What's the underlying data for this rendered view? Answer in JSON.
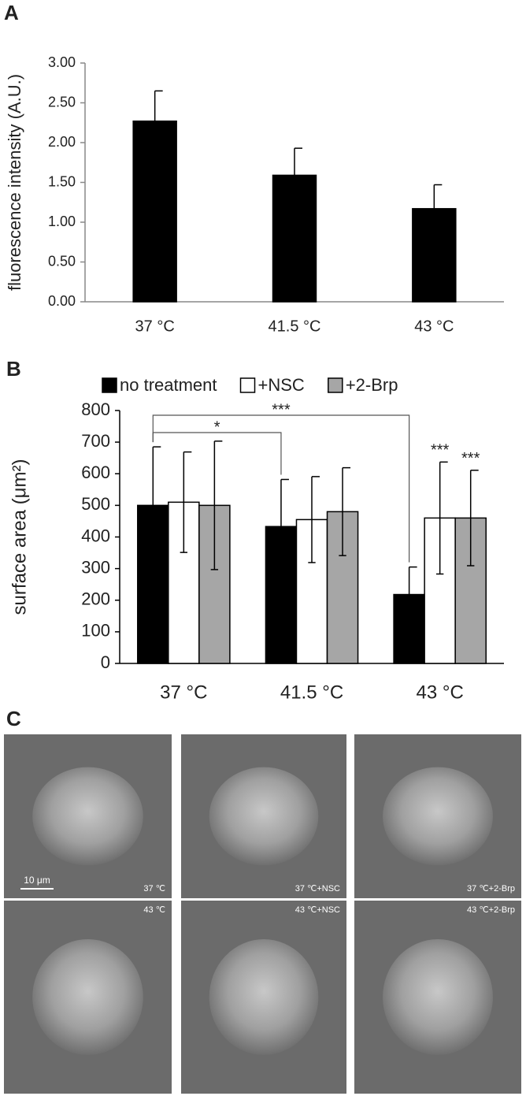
{
  "chart_data": [
    {
      "type": "bar",
      "panel_label": "A",
      "ylabel": "fluorescence intensity (A.U.)",
      "categories": [
        "37 °C",
        "41.5 °C",
        "43 °C"
      ],
      "values": [
        2.27,
        1.59,
        1.17
      ],
      "errors": [
        0.38,
        0.34,
        0.3
      ],
      "color": "#000000",
      "ylim": [
        0,
        3
      ],
      "yticks": [
        {
          "value": 0,
          "label": "0.00"
        },
        {
          "value": 0.5,
          "label": "0.50"
        },
        {
          "value": 1,
          "label": "1.00"
        },
        {
          "value": 1.5,
          "label": "1.50"
        },
        {
          "value": 2,
          "label": "2.00"
        },
        {
          "value": 2.5,
          "label": "2.50"
        },
        {
          "value": 3,
          "label": "3.00"
        }
      ],
      "grid": false
    },
    {
      "type": "bar",
      "panel_label": "B",
      "ylabel": "surface area (μm²)",
      "categories": [
        "37 °C",
        "41.5 °C",
        "43 °C"
      ],
      "series": [
        {
          "name": "no treatment",
          "color": "#000000",
          "values": [
            500,
            433,
            218
          ],
          "errors": [
            185,
            149,
            87
          ]
        },
        {
          "name": "+NSC",
          "color": "#ffffff",
          "values": [
            510,
            455,
            460
          ],
          "errors": [
            159,
            136,
            177
          ]
        },
        {
          "name": "+2-Brp",
          "color": "#a6a6a6",
          "values": [
            500,
            480,
            460
          ],
          "errors": [
            203,
            139,
            151
          ]
        }
      ],
      "ylim": [
        0,
        800
      ],
      "yticks": [
        0,
        100,
        200,
        300,
        400,
        500,
        600,
        700,
        800
      ],
      "grid": false,
      "legend": "top",
      "annotations": [
        {
          "text": "*",
          "from": {
            "category": 0,
            "series": 0
          },
          "to": {
            "category": 1,
            "series": 0
          }
        },
        {
          "text": "***",
          "from": {
            "category": 0,
            "series": 0
          },
          "to": {
            "category": 2,
            "series": 0
          }
        },
        {
          "text": "***",
          "category": 2,
          "series": 1
        },
        {
          "text": "***",
          "category": 2,
          "series": 2
        }
      ]
    }
  ],
  "images": {
    "panel_label": "C",
    "scale_bar": "10 μm",
    "captions": [
      "37 ℃",
      "37 ℃+NSC",
      "37 ℃+2-Brp",
      "43 ℃",
      "43 ℃+NSC",
      "43 ℃+2-Brp"
    ]
  }
}
